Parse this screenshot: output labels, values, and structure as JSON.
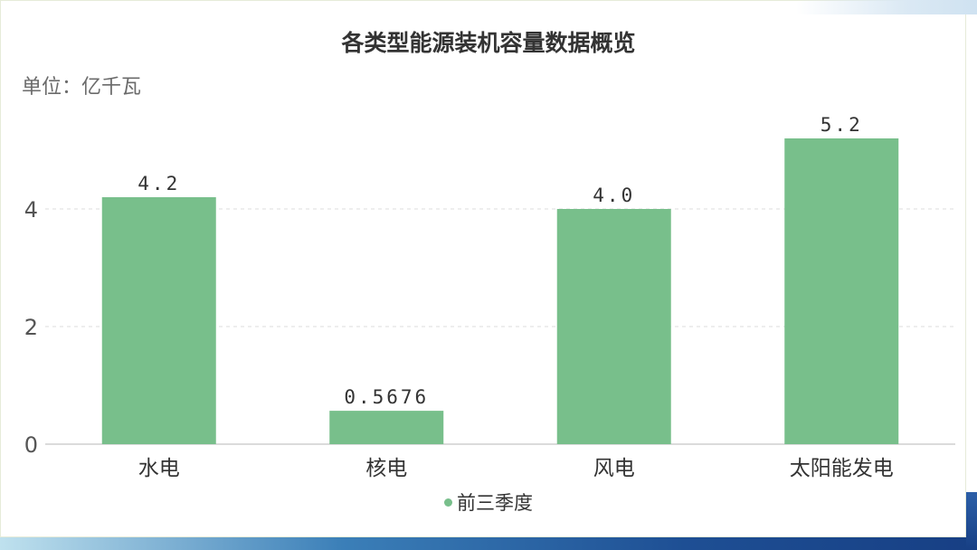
{
  "chart_data": {
    "type": "bar",
    "title": "各类型能源装机容量数据概览",
    "unit_label": "单位：亿千瓦",
    "categories": [
      "水电",
      "核电",
      "风电",
      "太阳能发电"
    ],
    "series": [
      {
        "name": "前三季度",
        "values": [
          4.2,
          0.5676,
          4.0,
          5.2
        ],
        "value_labels": [
          "4.2",
          "0.5676",
          "4.0",
          "5.2"
        ],
        "color": "#78bf8b"
      }
    ],
    "y_ticks": [
      0,
      2,
      4
    ],
    "ylim": [
      0,
      6
    ],
    "grid": "dashed horizontal",
    "legend_position": "bottom-center"
  }
}
